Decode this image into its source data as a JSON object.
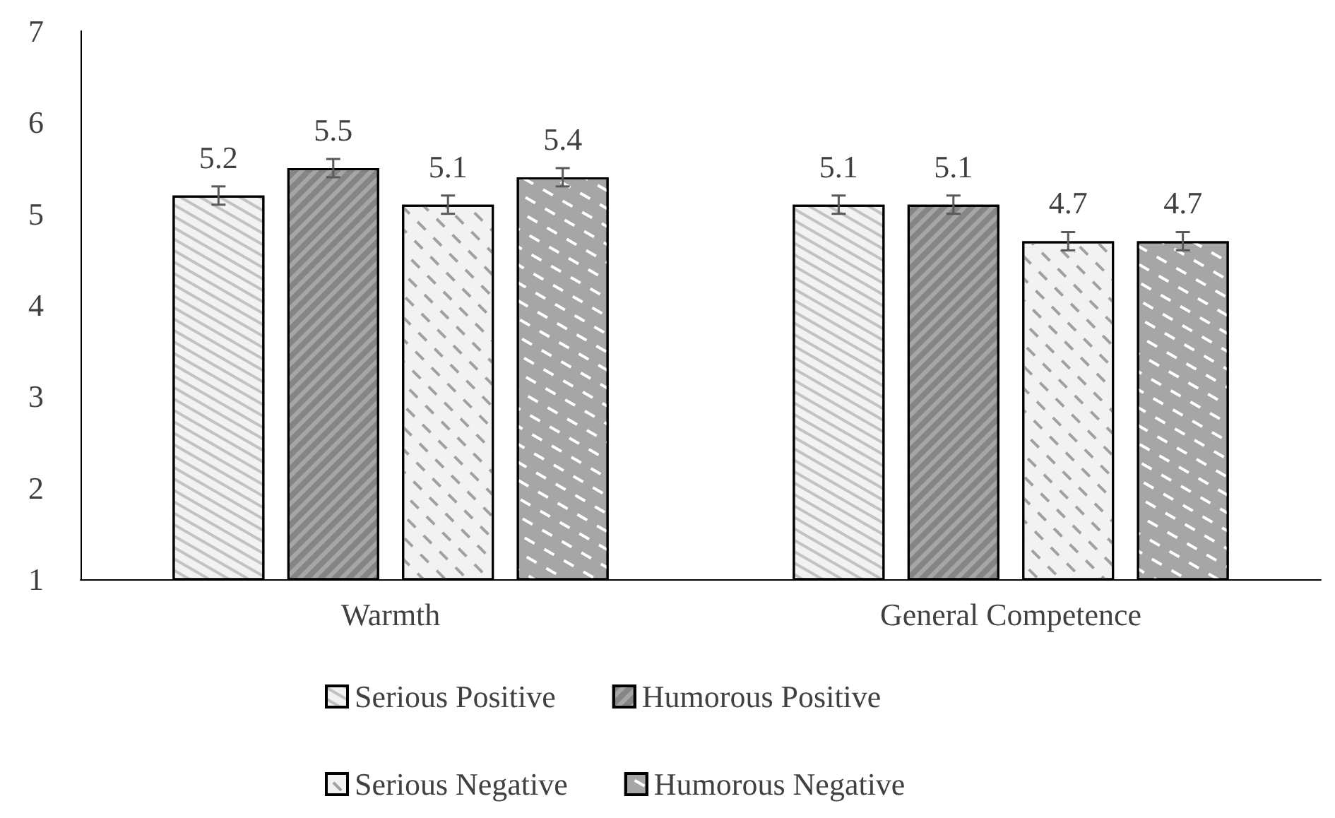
{
  "chart_data": {
    "type": "bar",
    "categories": [
      "Warmth",
      "General Competence"
    ],
    "series": [
      {
        "name": "Serious Positive",
        "color": "#f2f2f2",
        "values": [
          5.2,
          5.1
        ],
        "errors": [
          0.1,
          0.1
        ]
      },
      {
        "name": "Humorous Positive",
        "color": "#a6a6a6",
        "values": [
          5.5,
          5.1
        ],
        "errors": [
          0.1,
          0.1
        ]
      },
      {
        "name": "Serious Negative",
        "color": "#f2f2f2",
        "values": [
          5.1,
          4.7
        ],
        "errors": [
          0.1,
          0.1
        ]
      },
      {
        "name": "Humorous Negative",
        "color": "#a6a6a6",
        "values": [
          5.4,
          4.7
        ],
        "errors": [
          0.1,
          0.1
        ]
      }
    ],
    "ylim": [
      1,
      7
    ],
    "yticks": [
      1,
      2,
      3,
      4,
      5,
      6,
      7
    ],
    "grid": false,
    "legend": "bottom",
    "data_labels": true
  }
}
